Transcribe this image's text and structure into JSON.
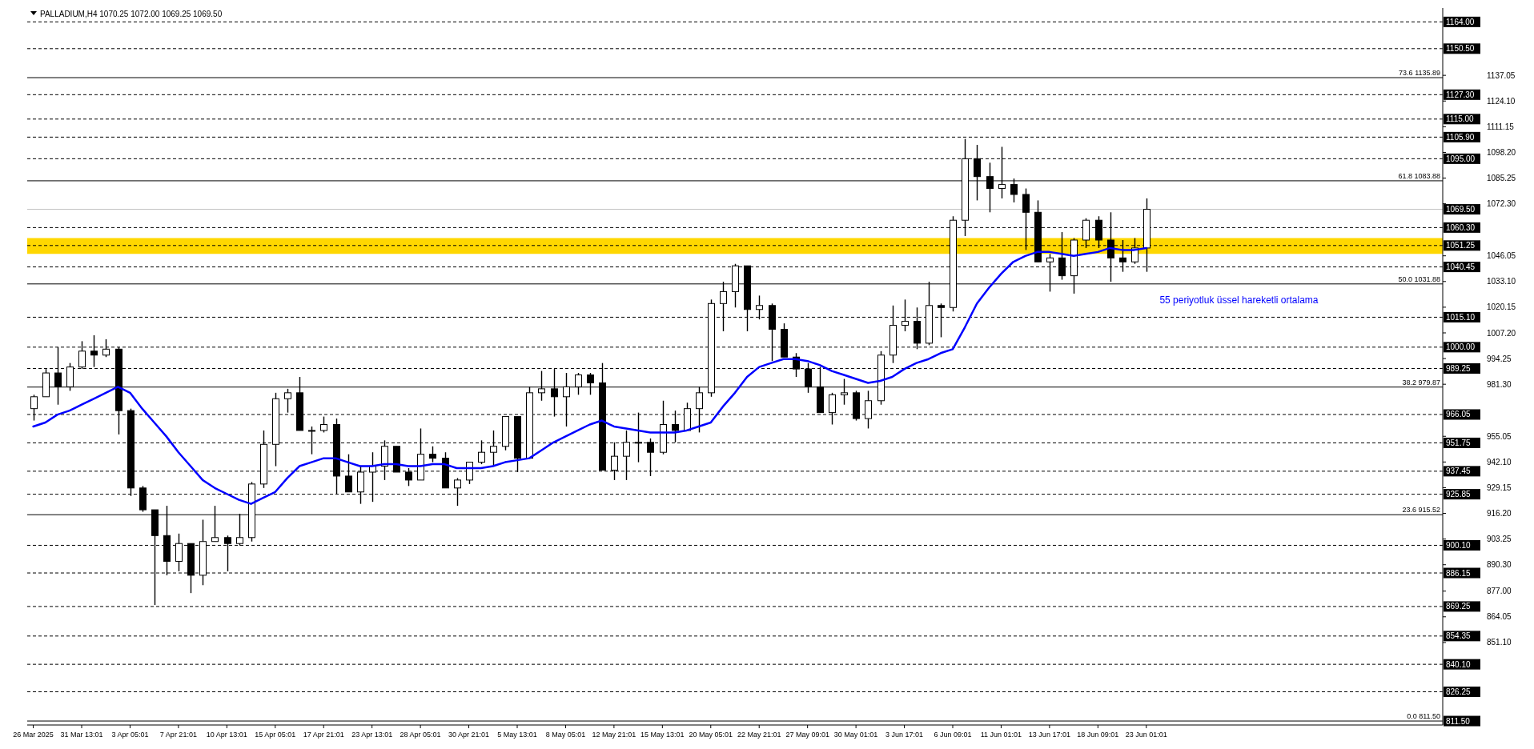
{
  "chart_data": {
    "type": "candlestick",
    "title": "PALLADIUM,H4 1070.25 1072.00 1069.25 1069.50",
    "categories": [
      "26 Mar 2025",
      null,
      null,
      null,
      "31 Mar 13:01",
      null,
      null,
      null,
      "3 Apr 05:01",
      null,
      null,
      null,
      "7 Apr 21:01",
      null,
      null,
      null,
      "10 Apr 13:01",
      null,
      null,
      null,
      "15 Apr 05:01",
      null,
      null,
      null,
      "17 Apr 21:01",
      null,
      null,
      null,
      "23 Apr 13:01",
      null,
      null,
      null,
      "28 Apr 05:01",
      null,
      null,
      null,
      "30 Apr 21:01",
      null,
      null,
      null,
      "5 May 13:01",
      null,
      null,
      null,
      "8 May 05:01",
      null,
      null,
      null,
      "12 May 21:01",
      null,
      null,
      null,
      "15 May 13:01",
      null,
      null,
      null,
      "20 May 05:01",
      null,
      null,
      null,
      "22 May 21:01",
      null,
      null,
      null,
      "27 May 09:01",
      null,
      null,
      null,
      "30 May 01:01",
      null,
      null,
      null,
      "3 Jun 17:01",
      null,
      null,
      null,
      "6 Jun 09:01",
      null,
      null,
      null,
      "11 Jun 01:01",
      null,
      null,
      null,
      "13 Jun 17:01",
      null,
      null,
      null,
      "18 Jun 09:01",
      null,
      null,
      null,
      "23 Jun 01:01",
      null,
      null,
      null,
      null,
      null,
      null,
      null,
      null,
      null,
      null,
      null,
      null,
      null,
      null,
      null,
      null,
      null,
      null,
      null,
      null,
      null,
      null,
      null,
      null
    ],
    "ohlc": [
      [
        969,
        976,
        963,
        975
      ],
      [
        975,
        989,
        975,
        987
      ],
      [
        987,
        1000,
        971,
        980
      ],
      [
        980,
        992,
        978,
        990
      ],
      [
        990,
        1003,
        989,
        998
      ],
      [
        998,
        1006,
        990,
        996
      ],
      [
        996,
        1004,
        995,
        999
      ],
      [
        999,
        1000,
        956,
        968
      ],
      [
        968,
        969,
        925,
        929
      ],
      [
        929,
        930,
        917,
        918
      ],
      [
        918,
        918,
        870,
        905
      ],
      [
        905,
        920,
        885,
        892
      ],
      [
        892,
        906,
        887,
        901
      ],
      [
        901,
        901,
        876,
        885
      ],
      [
        885,
        913,
        880,
        902
      ],
      [
        902,
        920,
        902,
        904
      ],
      [
        904,
        905,
        887,
        901
      ],
      [
        901,
        916,
        900,
        904
      ],
      [
        904,
        932,
        902,
        931
      ],
      [
        931,
        958,
        929,
        951
      ],
      [
        951,
        977,
        940,
        974
      ],
      [
        974,
        979,
        967,
        977
      ],
      [
        977,
        985,
        958,
        958
      ],
      [
        958,
        960,
        946,
        958
      ],
      [
        958,
        965,
        957,
        961
      ],
      [
        961,
        964,
        926,
        935
      ],
      [
        935,
        946,
        927,
        927
      ],
      [
        927,
        940,
        921,
        937
      ],
      [
        937,
        947,
        922,
        940
      ],
      [
        940,
        953,
        933,
        950
      ],
      [
        950,
        950,
        937,
        937
      ],
      [
        937,
        939,
        930,
        933
      ],
      [
        933,
        959,
        933,
        946
      ],
      [
        946,
        950,
        942,
        944
      ],
      [
        944,
        947,
        929,
        929
      ],
      [
        929,
        934,
        920,
        933
      ],
      [
        933,
        942,
        931,
        942
      ],
      [
        942,
        953,
        941,
        947
      ],
      [
        947,
        958,
        940,
        950
      ],
      [
        950,
        965,
        948,
        965
      ],
      [
        965,
        965,
        937,
        944
      ],
      [
        944,
        980,
        944,
        977
      ],
      [
        977,
        988,
        973,
        979
      ],
      [
        979,
        989,
        965,
        975
      ],
      [
        975,
        987,
        960,
        980
      ],
      [
        980,
        987,
        976,
        986
      ],
      [
        986,
        987,
        976,
        982
      ],
      [
        982,
        992,
        938,
        938
      ],
      [
        938,
        952,
        933,
        945
      ],
      [
        945,
        958,
        933,
        952
      ],
      [
        952,
        967,
        942,
        952
      ],
      [
        952,
        954,
        935,
        947
      ],
      [
        947,
        973,
        946,
        961
      ],
      [
        961,
        968,
        952,
        958
      ],
      [
        958,
        972,
        958,
        969
      ],
      [
        969,
        980,
        957,
        977
      ],
      [
        977,
        1024,
        975,
        1022
      ],
      [
        1022,
        1033,
        1008,
        1028
      ],
      [
        1028,
        1042,
        1020,
        1041
      ],
      [
        1041,
        1041,
        1008,
        1019
      ],
      [
        1019,
        1026,
        1014,
        1021
      ],
      [
        1021,
        1022,
        993,
        1009
      ],
      [
        1009,
        1012,
        995,
        995
      ],
      [
        995,
        997,
        985,
        989
      ],
      [
        989,
        992,
        977,
        980
      ],
      [
        980,
        990,
        967,
        967
      ],
      [
        967,
        977,
        961,
        976
      ],
      [
        976,
        984,
        971,
        977
      ],
      [
        977,
        978,
        963,
        964
      ],
      [
        964,
        978,
        959,
        973
      ],
      [
        973,
        998,
        971,
        996
      ],
      [
        996,
        1021,
        992,
        1011
      ],
      [
        1011,
        1024,
        1008,
        1013
      ],
      [
        1013,
        1020,
        999,
        1002
      ],
      [
        1002,
        1033,
        1001,
        1021
      ],
      [
        1021,
        1022,
        1005,
        1020
      ],
      [
        1020,
        1066,
        1018,
        1064
      ],
      [
        1064,
        1105,
        1056,
        1095
      ],
      [
        1095,
        1102,
        1074,
        1086
      ],
      [
        1086,
        1093,
        1068,
        1080
      ],
      [
        1080,
        1101,
        1075,
        1082
      ],
      [
        1082,
        1085,
        1073,
        1077
      ],
      [
        1077,
        1080,
        1049,
        1068
      ],
      [
        1068,
        1074,
        1043,
        1043
      ],
      [
        1043,
        1047,
        1028,
        1045
      ],
      [
        1045,
        1058,
        1034,
        1036
      ],
      [
        1036,
        1055,
        1027,
        1054
      ],
      [
        1054,
        1065,
        1050,
        1064
      ],
      [
        1064,
        1066,
        1050,
        1054
      ],
      [
        1054,
        1068,
        1033,
        1045
      ],
      [
        1045,
        1054,
        1038,
        1043
      ],
      [
        1043,
        1055,
        1042,
        1050
      ],
      [
        1050,
        1075,
        1038,
        1069.5
      ],
      null,
      null,
      null,
      null,
      null,
      null,
      null,
      null,
      null,
      null,
      null,
      null,
      null,
      null,
      null,
      null,
      null,
      null,
      null,
      null,
      null,
      null,
      null,
      null
    ],
    "series": [
      {
        "type": "line",
        "color": "#0000ff",
        "values": [
          960,
          962,
          966,
          968,
          971,
          974,
          977,
          980,
          977,
          969,
          962,
          955,
          947,
          940,
          933,
          929,
          926,
          923,
          921,
          924,
          927,
          934,
          940,
          942,
          944,
          944,
          942,
          940,
          940,
          941,
          941,
          940,
          940,
          941,
          941,
          939,
          939,
          939,
          940,
          942,
          943,
          944,
          948,
          952,
          955,
          958,
          961,
          963,
          960,
          959,
          958,
          957,
          957,
          957,
          958,
          960,
          962,
          970,
          977,
          985,
          990,
          992,
          994,
          994,
          993,
          991,
          988,
          986,
          984,
          982,
          983,
          985,
          989,
          992,
          994,
          997,
          999,
          1010,
          1022,
          1030,
          1037,
          1043,
          1046,
          1048,
          1048,
          1047,
          1046,
          1047,
          1048,
          1050,
          1049,
          1049,
          1050,
          null,
          null,
          null,
          null,
          null,
          null,
          null,
          null,
          null,
          null,
          null,
          null,
          null,
          null,
          null,
          null,
          null,
          null,
          null,
          null,
          null,
          null,
          null,
          null
        ]
      }
    ],
    "ylim": [
      809.5,
      1171
    ],
    "yticks": [
      1137.05,
      {
        "value": 1124.1,
        "label": "1124.10"
      },
      1111.15,
      {
        "value": 1098.2,
        "label": "1098.20"
      },
      1085.25,
      {
        "value": 1072.3,
        "label": "1072.30"
      },
      1046.05,
      {
        "value": 1033.1,
        "label": "1033.10"
      },
      1020.15,
      {
        "value": 1007.2,
        "label": "1007.20"
      },
      994.25,
      {
        "value": 981.3,
        "label": "981.30"
      },
      955.05,
      {
        "value": 942.1,
        "label": "942.10"
      },
      929.15,
      {
        "value": 916.2,
        "label": "916.20"
      },
      903.25,
      {
        "value": 890.3,
        "label": "890.30"
      },
      {
        "value": 877,
        "label": "877.00"
      },
      864.05,
      {
        "value": 851.1,
        "label": "851.10"
      }
    ],
    "ref_lines": [
      {
        "axis": "y",
        "value": 1164,
        "label": "1164.00",
        "color": "#000000",
        "line_style": "dashed"
      },
      {
        "axis": "y",
        "value": 1150.5,
        "label": "1150.50",
        "color": "#000000",
        "line_style": "dashed"
      },
      {
        "axis": "y",
        "value": 1127.3,
        "label": "1127.30",
        "color": "#000000",
        "line_style": "dashed"
      },
      {
        "axis": "y",
        "value": 1115,
        "label": "1115.00",
        "color": "#000000",
        "line_style": "dashed"
      },
      {
        "axis": "y",
        "value": 1105.9,
        "label": "1105.90",
        "color": "#000000",
        "line_style": "dashed"
      },
      {
        "axis": "y",
        "value": 1095,
        "label": "1095.00",
        "color": "#000000",
        "line_style": "dashed"
      },
      {
        "axis": "y",
        "value": 1060.3,
        "label": "1060.30",
        "color": "#000000",
        "line_style": "dashed"
      },
      {
        "axis": "y",
        "value": 1051.25,
        "label": "1051.25",
        "color": "#000000",
        "line_style": "dashed"
      },
      {
        "axis": "y",
        "value": 1040.45,
        "label": "1040.45",
        "color": "#000000",
        "line_style": "dashed"
      },
      {
        "axis": "y",
        "value": 1015.1,
        "label": "1015.10",
        "color": "#000000",
        "line_style": "dashed"
      },
      {
        "axis": "y",
        "value": 1000,
        "label": "1000.00",
        "color": "#000000",
        "line_style": "dashed"
      },
      {
        "axis": "y",
        "value": 989.25,
        "label": "989.25",
        "color": "#000000",
        "line_style": "dashed"
      },
      {
        "axis": "y",
        "value": 966.05,
        "label": "966.05",
        "color": "#000000",
        "line_style": "dashed"
      },
      {
        "axis": "y",
        "value": 951.75,
        "label": "951.75",
        "color": "#000000",
        "line_style": "dashed"
      },
      {
        "axis": "y",
        "value": 937.45,
        "label": "937.45",
        "color": "#000000",
        "line_style": "dashed"
      },
      {
        "axis": "y",
        "value": 925.85,
        "label": "925.85",
        "color": "#000000",
        "line_style": "dashed"
      },
      {
        "axis": "y",
        "value": 900.1,
        "label": "900.10",
        "color": "#000000",
        "line_style": "dashed"
      },
      {
        "axis": "y",
        "value": 886.15,
        "label": "886.15",
        "color": "#000000",
        "line_style": "dashed"
      },
      {
        "axis": "y",
        "value": 869.25,
        "label": "869.25",
        "color": "#000000",
        "line_style": "dashed"
      },
      {
        "axis": "y",
        "value": 854.35,
        "label": "854.35",
        "color": "#000000",
        "line_style": "dashed"
      },
      {
        "axis": "y",
        "value": 840.1,
        "label": "840.10",
        "color": "#000000",
        "line_style": "dashed"
      },
      {
        "axis": "y",
        "value": 826.25,
        "label": "826.25",
        "color": "#000000",
        "line_style": "dashed"
      },
      {
        "axis": "y",
        "value": 1069.5,
        "label": "1069.50",
        "color": "#c0c0c0",
        "line_style": "solid"
      },
      {
        "axis": "y",
        "value": 1135.89,
        "color": "#000000",
        "line_style": "solid"
      },
      {
        "axis": "y",
        "value": 1083.88,
        "color": "#000000",
        "line_style": "solid"
      },
      {
        "axis": "y",
        "value": 1031.88,
        "color": "#000000",
        "line_style": "solid"
      },
      {
        "axis": "y",
        "value": 979.87,
        "color": "#000000",
        "line_style": "solid"
      },
      {
        "axis": "y",
        "value": 915.52,
        "color": "#000000",
        "line_style": "solid"
      },
      {
        "axis": "y",
        "value": 811.5,
        "label": "811.50",
        "color": "#000000",
        "line_style": "solid"
      }
    ],
    "bands": [
      {
        "axis": "y",
        "from": 1047,
        "to": 1055,
        "color": "#ffd700"
      }
    ],
    "annotations": [
      {
        "text": "73.6 1135.89",
        "y": 1135.89
      },
      {
        "text": "61.8 1083.88",
        "y": 1083.88
      },
      {
        "text": "50.0 1031.88",
        "y": 1031.88
      },
      {
        "text": "38.2 979.87",
        "y": 979.87
      },
      {
        "text": "23.6 915.52",
        "y": 915.52
      },
      {
        "text": "0.0 811.50",
        "y": 811.5
      },
      "55 periyotluk üssel hareketli ortalama"
    ]
  }
}
